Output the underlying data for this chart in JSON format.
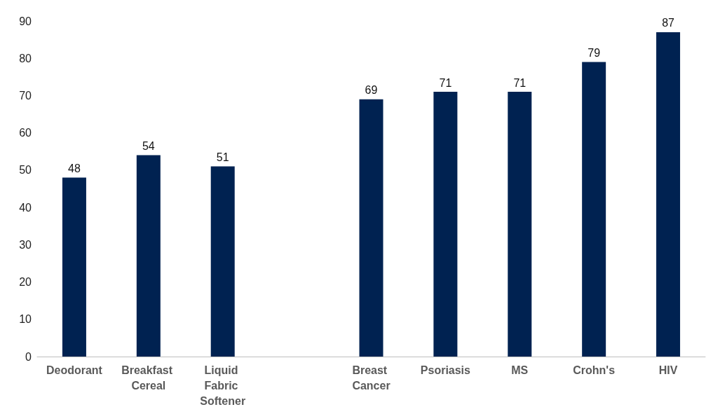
{
  "chart_data": {
    "type": "bar",
    "categories": [
      "Deodorant",
      "Breakfast Cereal",
      "Liquid Fabric Softener",
      null,
      "Breast Cancer",
      "Psoriasis",
      "MS",
      "Crohn's",
      "HIV"
    ],
    "values": [
      48,
      54,
      51,
      null,
      69,
      71,
      71,
      79,
      87
    ],
    "color": "#002251",
    "ylim": [
      0,
      90
    ],
    "yticks": [
      0,
      10,
      20,
      30,
      40,
      50,
      60,
      70,
      80,
      90
    ],
    "grid": false,
    "data_labels": true
  }
}
